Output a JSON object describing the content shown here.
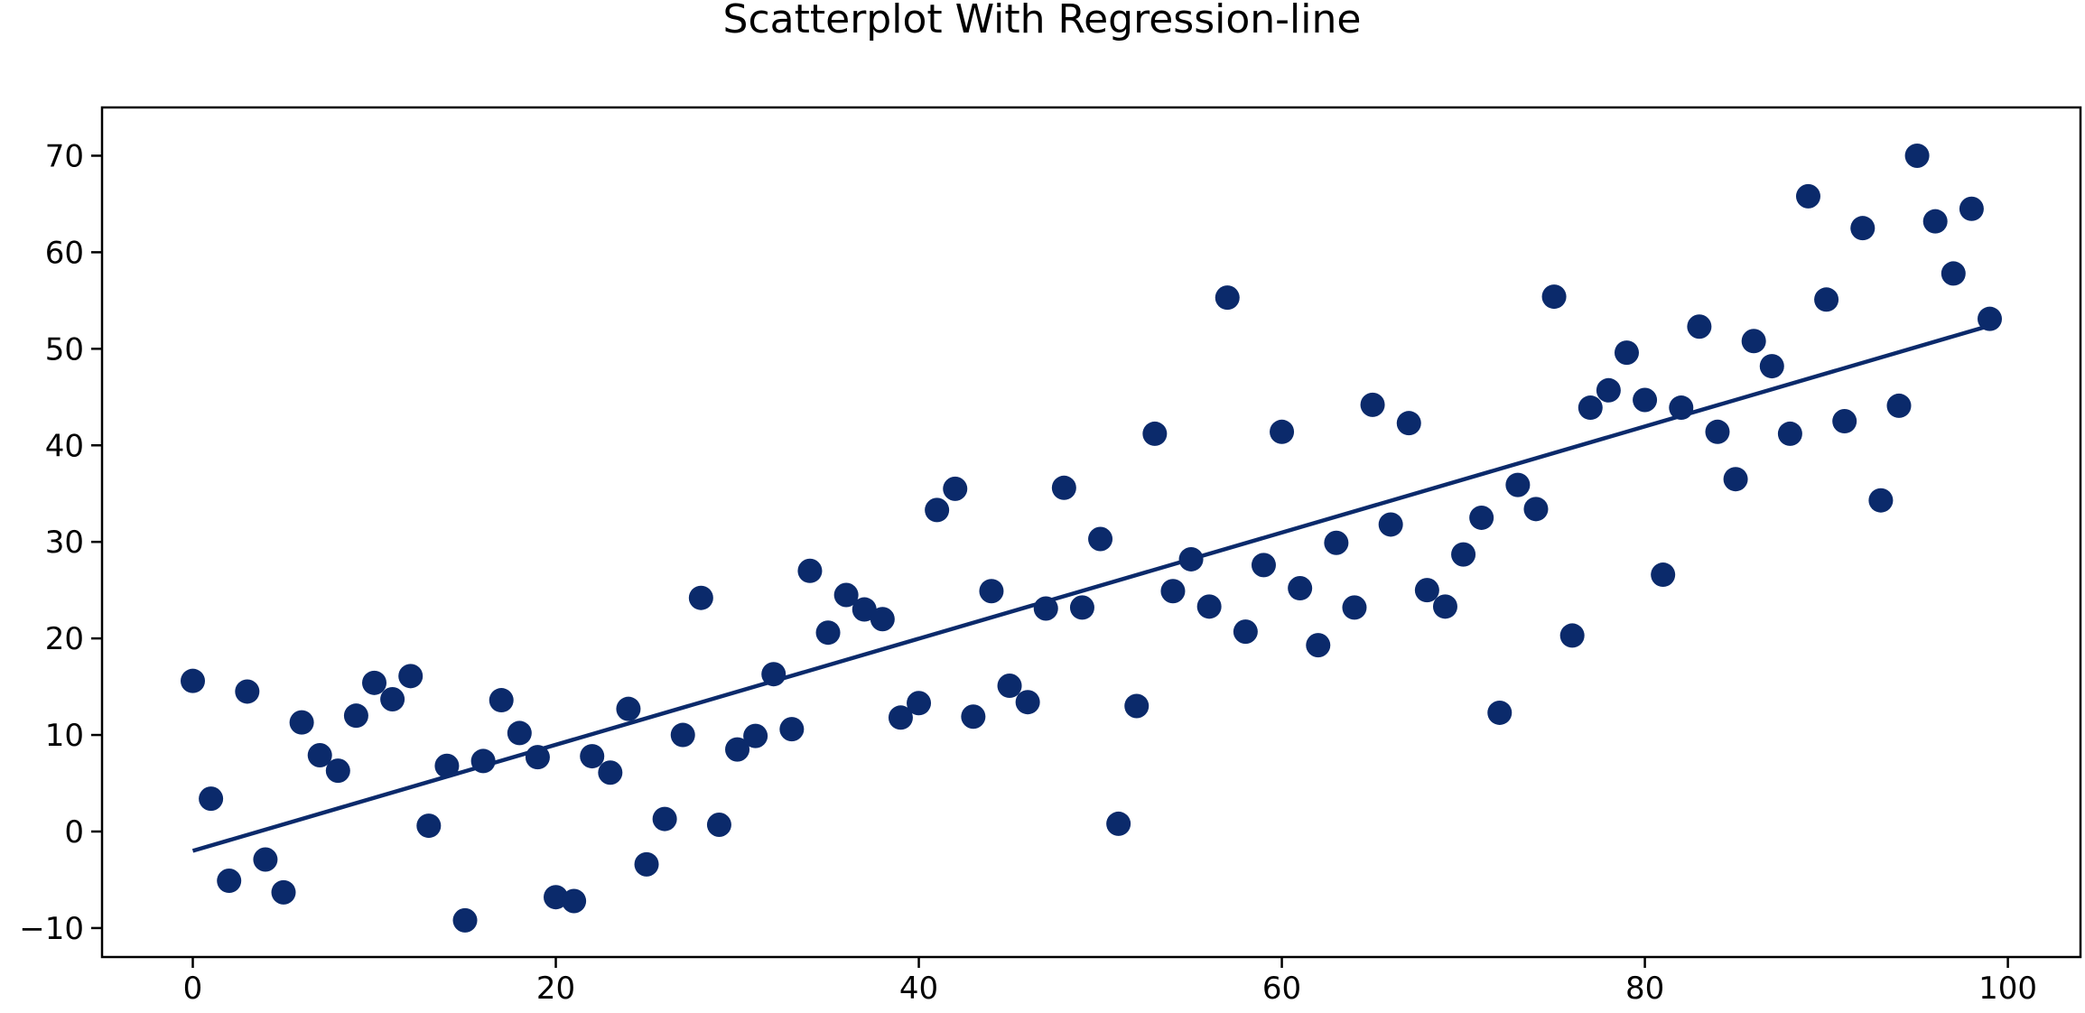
{
  "chart_data": {
    "type": "scatter",
    "title": "Scatterplot With Regression-line",
    "xlabel": "",
    "ylabel": "",
    "xlim": [
      -5,
      104
    ],
    "ylim": [
      -13,
      75
    ],
    "x_ticks": [
      0,
      20,
      40,
      60,
      80,
      100
    ],
    "y_ticks": [
      -10,
      0,
      10,
      20,
      30,
      40,
      50,
      60,
      70
    ],
    "grid": false,
    "legend": "none",
    "colors": {
      "points": "#0b2a6b",
      "line": "#0b2a6b",
      "axes": "#000000"
    },
    "series": [
      {
        "type": "scatter",
        "x": [
          0,
          1,
          2,
          3,
          4,
          5,
          6,
          7,
          8,
          9,
          10,
          11,
          12,
          13,
          14,
          15,
          16,
          17,
          18,
          19,
          20,
          21,
          22,
          23,
          24,
          25,
          26,
          27,
          28,
          29,
          30,
          31,
          32,
          33,
          34,
          35,
          36,
          37,
          38,
          39,
          40,
          41,
          42,
          43,
          44,
          45,
          46,
          47,
          48,
          49,
          50,
          51,
          52,
          53,
          54,
          55,
          56,
          57,
          58,
          59,
          60,
          61,
          62,
          63,
          64,
          65,
          66,
          67,
          68,
          69,
          70,
          71,
          72,
          73,
          74,
          75,
          76,
          77,
          78,
          79,
          80,
          81,
          82,
          83,
          84,
          85,
          86,
          87,
          88,
          89,
          90,
          91,
          92,
          93,
          94,
          95,
          96,
          97,
          98,
          99
        ],
        "y": [
          15.6,
          3.4,
          -5.1,
          14.5,
          -2.9,
          -6.3,
          11.3,
          7.9,
          6.3,
          12.0,
          15.4,
          13.7,
          16.1,
          0.6,
          6.8,
          -9.2,
          7.3,
          13.6,
          10.2,
          7.7,
          -6.8,
          -7.2,
          7.8,
          6.1,
          12.7,
          -3.4,
          1.3,
          10.0,
          24.2,
          0.7,
          8.5,
          9.9,
          16.3,
          10.6,
          27.0,
          20.6,
          24.5,
          23.0,
          22.0,
          11.8,
          13.3,
          33.3,
          35.5,
          11.9,
          24.9,
          15.1,
          13.4,
          23.1,
          35.6,
          23.2,
          30.3,
          0.8,
          13.0,
          41.2,
          24.9,
          28.2,
          23.3,
          55.3,
          20.7,
          27.6,
          41.4,
          25.2,
          19.3,
          29.9,
          23.2,
          44.2,
          31.8,
          42.3,
          25.0,
          23.3,
          28.7,
          32.5,
          12.3,
          35.9,
          33.4,
          55.4,
          20.3,
          43.9,
          45.7,
          49.6,
          44.7,
          26.6,
          43.9,
          52.3,
          41.4,
          36.5,
          50.8,
          48.2,
          41.2,
          65.8,
          55.1,
          42.5,
          62.5,
          34.3,
          44.1,
          70.0,
          63.2,
          57.8,
          64.5,
          53.1
        ]
      },
      {
        "type": "line",
        "x": [
          0,
          99
        ],
        "y": [
          -2.0,
          52.4
        ]
      }
    ]
  }
}
